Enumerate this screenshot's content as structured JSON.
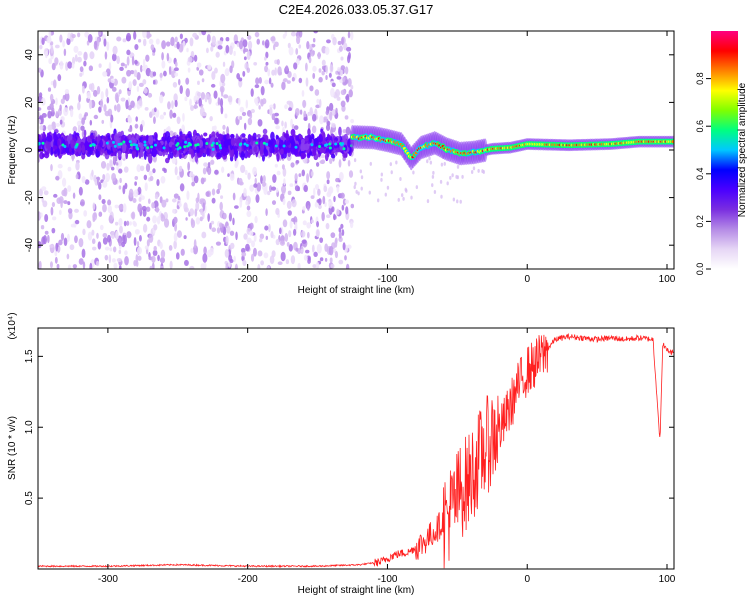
{
  "title": "C2E4.2026.033.05.37.G17",
  "chart_data": [
    {
      "type": "heatmap",
      "xlabel": "Height of straight line (km)",
      "ylabel": "Frequency (Hz)",
      "xlim": [
        -350,
        105
      ],
      "ylim": [
        -50,
        50
      ],
      "xticks": [
        -300,
        -200,
        -100,
        0,
        100
      ],
      "yticks": [
        -40,
        -20,
        0,
        20,
        40
      ],
      "xtick_labels": [
        "-300",
        "-200",
        "-100",
        "0",
        "100"
      ],
      "ytick_labels": [
        "-40",
        "-20",
        "0",
        "20",
        "40"
      ],
      "colorbar": {
        "label": "Normalized spectral amplitude",
        "range": [
          0,
          1
        ],
        "ticks": [
          0.0,
          0.2,
          0.4,
          0.6,
          0.8
        ],
        "tick_labels": [
          "0.0",
          "0.2",
          "0.4",
          "0.6",
          "0.8"
        ],
        "colors": [
          "#ffffff",
          "#e6d6f5",
          "#b58be6",
          "#7a2ee0",
          "#4a00ff",
          "#0000ff",
          "#00c8ff",
          "#00ff80",
          "#80ff00",
          "#ffff00",
          "#ff8000",
          "#ff0000",
          "#ff0080"
        ]
      },
      "signal_track": [
        {
          "x": -125,
          "y": 5.5
        },
        {
          "x": -110,
          "y": 5.2
        },
        {
          "x": -100,
          "y": 4.0
        },
        {
          "x": -90,
          "y": 2.5
        },
        {
          "x": -83,
          "y": -3.5
        },
        {
          "x": -76,
          "y": 1.0
        },
        {
          "x": -66,
          "y": 3.0
        },
        {
          "x": -58,
          "y": 0.5
        },
        {
          "x": -48,
          "y": -1.5
        },
        {
          "x": -38,
          "y": -1.0
        },
        {
          "x": -25,
          "y": 0.5
        },
        {
          "x": -12,
          "y": 1.0
        },
        {
          "x": 0,
          "y": 2.5
        },
        {
          "x": 30,
          "y": 2.0
        },
        {
          "x": 60,
          "y": 2.5
        },
        {
          "x": 80,
          "y": 3.5
        },
        {
          "x": 105,
          "y": 3.5
        }
      ],
      "noise_region_x": [
        -350,
        -125
      ],
      "noise_center_y": 2.0
    },
    {
      "type": "line",
      "xlabel": "Height of straight line (km)",
      "ylabel": "SNR (10 * v/v)",
      "yscale_label": "(x10⁴)",
      "xlim": [
        -350,
        105
      ],
      "ylim": [
        0,
        1.7
      ],
      "xticks": [
        -300,
        -200,
        -100,
        0,
        100
      ],
      "yticks": [
        0.5,
        1.0,
        1.5
      ],
      "xtick_labels": [
        "-300",
        "-200",
        "-100",
        "0",
        "100"
      ],
      "ytick_labels": [
        "0.5",
        "1.0",
        "1.5"
      ],
      "color": "#ff2020",
      "series": [
        {
          "name": "SNR",
          "x": [
            -350,
            -300,
            -250,
            -200,
            -150,
            -120,
            -105,
            -95,
            -85,
            -75,
            -65,
            -55,
            -48,
            -42,
            -36,
            -30,
            -24,
            -18,
            -12,
            -6,
            0,
            6,
            12,
            20,
            30,
            40,
            50,
            60,
            70,
            80,
            90,
            95,
            97,
            99,
            105
          ],
          "y": [
            0.02,
            0.02,
            0.03,
            0.02,
            0.02,
            0.03,
            0.05,
            0.1,
            0.12,
            0.18,
            0.28,
            0.4,
            0.55,
            0.62,
            0.75,
            0.85,
            0.95,
            1.0,
            1.15,
            1.3,
            1.4,
            1.45,
            1.52,
            1.62,
            1.64,
            1.63,
            1.62,
            1.63,
            1.62,
            1.63,
            1.62,
            0.9,
            1.6,
            1.55,
            1.52
          ]
        }
      ]
    }
  ]
}
